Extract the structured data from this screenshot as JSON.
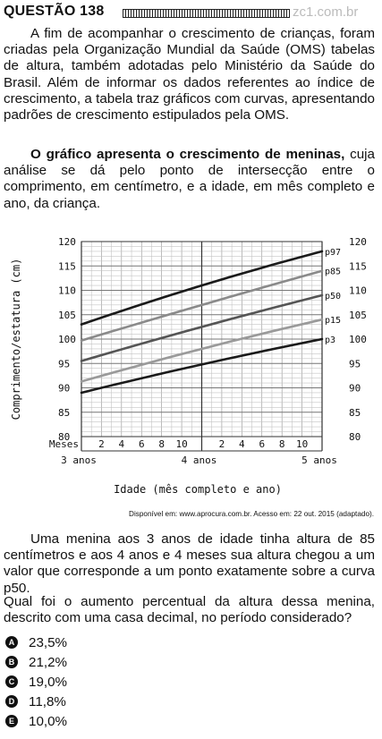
{
  "header": {
    "question_label": "QUESTÃO 138",
    "watermark": "zc1.com.br"
  },
  "paragraphs": {
    "p1": "A fim de acompanhar o crescimento de crianças, foram criadas pela Organização Mundial da Saúde (OMS) tabelas de altura, também adotadas pelo Ministério da Saúde do Brasil. Além de informar os dados referentes ao índice de crescimento, a tabela traz gráficos com curvas, apresentando padrões de crescimento estipulados pela OMS.",
    "p2_bold": "O gráfico apresenta o crescimento de meninas,",
    "p2_rest": " cuja análise se dá pelo ponto de intersecção entre o comprimento, em centímetro, e a idade, em mês completo e ano, da criança.",
    "p3": "Uma menina aos 3 anos de idade tinha altura de 85 centímetros e aos 4 anos e 4 meses sua altura chegou a um valor que corresponde a um ponto exatamente sobre a curva p50.",
    "p4": "Qual foi o aumento percentual da altura dessa menina, descrito com uma casa decimal, no período considerado?"
  },
  "source": "Disponível em: www.aprocura.com.br. Acesso em: 22 out. 2015 (adaptado).",
  "chart_data": {
    "type": "line",
    "ylabel": "Comprimento/estatura (cm)",
    "xlabel": "Idade (mês completo e ano)",
    "ylim": [
      80,
      120
    ],
    "yticks": [
      "80",
      "85",
      "90",
      "95",
      "100",
      "105",
      "110",
      "115",
      "120"
    ],
    "x_range_months": [
      36,
      60
    ],
    "month_label": "Meses",
    "month_ticks": [
      "2",
      "4",
      "6",
      "8",
      "10",
      "2",
      "4",
      "6",
      "8",
      "10"
    ],
    "year_labels": [
      "3 anos",
      "4 anos",
      "5 anos"
    ],
    "grid": true,
    "series": [
      {
        "name": "p97",
        "color": "#1a1a1a",
        "x": [
          36,
          48,
          60
        ],
        "y": [
          103.0,
          111.0,
          118.0
        ]
      },
      {
        "name": "p85",
        "color": "#8a8a8a",
        "x": [
          36,
          48,
          60
        ],
        "y": [
          99.7,
          107.0,
          114.0
        ]
      },
      {
        "name": "p50",
        "color": "#555555",
        "x": [
          36,
          48,
          60
        ],
        "y": [
          95.5,
          102.5,
          109.0
        ]
      },
      {
        "name": "p15",
        "color": "#9a9a9a",
        "x": [
          36,
          48,
          60
        ],
        "y": [
          91.3,
          98.0,
          104.0
        ]
      },
      {
        "name": "p3",
        "color": "#1a1a1a",
        "x": [
          36,
          48,
          60
        ],
        "y": [
          89.0,
          94.8,
          100.0
        ]
      }
    ]
  },
  "options": [
    {
      "letter": "A",
      "text": "23,5%"
    },
    {
      "letter": "B",
      "text": "21,2%"
    },
    {
      "letter": "C",
      "text": "19,0%"
    },
    {
      "letter": "D",
      "text": "11,8%"
    },
    {
      "letter": "E",
      "text": "10,0%"
    }
  ]
}
